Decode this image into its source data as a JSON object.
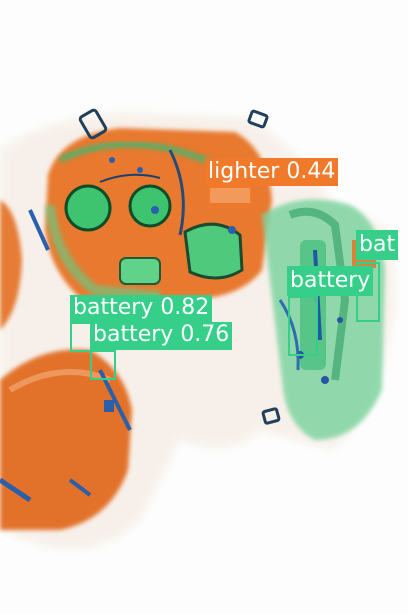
{
  "image": {
    "kind": "x-ray baggage scan with detection overlays",
    "background_color": "#fcfdfc"
  },
  "detections": [
    {
      "label": "lighter",
      "score": "0.44",
      "color": "#f07a2a"
    },
    {
      "label": "battery",
      "score": "0.82",
      "color": "#35cf8a"
    },
    {
      "label": "battery",
      "score": "0.76",
      "color": "#35cf8a"
    },
    {
      "label": "battery",
      "score": "",
      "color": "#35cf8a"
    },
    {
      "label": "bat",
      "score": "",
      "color": "#35cf8a"
    }
  ]
}
